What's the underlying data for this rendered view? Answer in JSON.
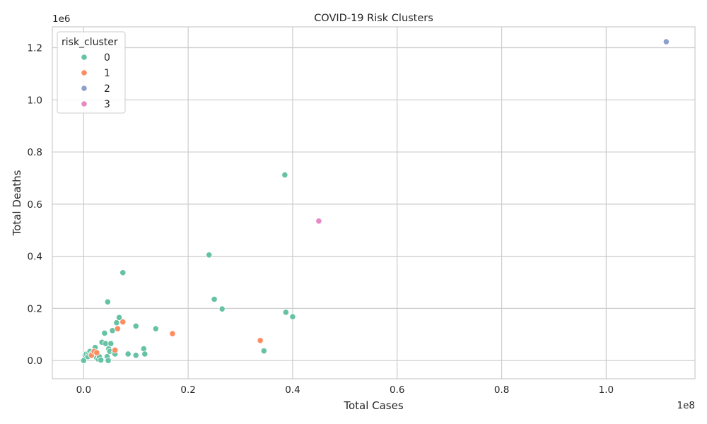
{
  "chart_data": {
    "type": "scatter",
    "title": "COVID-19 Risk Clusters",
    "xlabel": "Total Cases",
    "ylabel": "Total Deaths",
    "x_offset_text": "1e8",
    "y_offset_text": "1e6",
    "x_unit_scale": 100000000,
    "y_unit_scale": 1000000,
    "xlim": [
      -6000000,
      117000000
    ],
    "ylim": [
      -70000,
      1280000
    ],
    "x_ticks": [
      {
        "value": 0,
        "label": "0.0"
      },
      {
        "value": 20000000,
        "label": "0.2"
      },
      {
        "value": 40000000,
        "label": "0.4"
      },
      {
        "value": 60000000,
        "label": "0.6"
      },
      {
        "value": 80000000,
        "label": "0.8"
      },
      {
        "value": 100000000,
        "label": "1.0"
      }
    ],
    "y_ticks": [
      {
        "value": 0,
        "label": "0.0"
      },
      {
        "value": 200000,
        "label": "0.2"
      },
      {
        "value": 400000,
        "label": "0.4"
      },
      {
        "value": 600000,
        "label": "0.6"
      },
      {
        "value": 800000,
        "label": "0.8"
      },
      {
        "value": 1000000,
        "label": "1.0"
      },
      {
        "value": 1200000,
        "label": "1.2"
      }
    ],
    "grid": true,
    "legend": {
      "title": "risk_cluster",
      "placement": "top-left"
    },
    "series": [
      {
        "name": "0",
        "color": "#66c2a5",
        "points": [
          [
            0,
            0
          ],
          [
            300000,
            20000
          ],
          [
            500000,
            25000
          ],
          [
            800000,
            15000
          ],
          [
            1000000,
            30000
          ],
          [
            1200000,
            35000
          ],
          [
            1500000,
            25000
          ],
          [
            1800000,
            20000
          ],
          [
            2000000,
            30000
          ],
          [
            2200000,
            50000
          ],
          [
            2500000,
            10000
          ],
          [
            2800000,
            5000
          ],
          [
            3000000,
            15000
          ],
          [
            3300000,
            2000
          ],
          [
            3500000,
            70000
          ],
          [
            4000000,
            105000
          ],
          [
            4200000,
            65000
          ],
          [
            4500000,
            15000
          ],
          [
            4600000,
            225000
          ],
          [
            4700000,
            0
          ],
          [
            4800000,
            45000
          ],
          [
            5000000,
            35000
          ],
          [
            5200000,
            65000
          ],
          [
            5500000,
            115000
          ],
          [
            5800000,
            30000
          ],
          [
            6000000,
            25000
          ],
          [
            6300000,
            145000
          ],
          [
            6800000,
            165000
          ],
          [
            7500000,
            337000
          ],
          [
            8500000,
            25000
          ],
          [
            10000000,
            132000
          ],
          [
            10000000,
            20000
          ],
          [
            11500000,
            45000
          ],
          [
            11700000,
            25000
          ],
          [
            13800000,
            122000
          ],
          [
            24000000,
            405000
          ],
          [
            25000000,
            235000
          ],
          [
            26500000,
            198000
          ],
          [
            34500000,
            37000
          ],
          [
            38500000,
            712000
          ],
          [
            38700000,
            185000
          ],
          [
            40000000,
            168000
          ]
        ]
      },
      {
        "name": "1",
        "color": "#fc8d62",
        "points": [
          [
            1500000,
            20000
          ],
          [
            2000000,
            35000
          ],
          [
            2500000,
            30000
          ],
          [
            6000000,
            40000
          ],
          [
            6500000,
            122000
          ],
          [
            7500000,
            148000
          ],
          [
            17000000,
            103000
          ],
          [
            33800000,
            77000
          ]
        ]
      },
      {
        "name": "2",
        "color": "#8da0cb",
        "points": [
          [
            111500000,
            1223000
          ]
        ]
      },
      {
        "name": "3",
        "color": "#e78ac3",
        "points": [
          [
            45000000,
            535000
          ]
        ]
      }
    ]
  }
}
